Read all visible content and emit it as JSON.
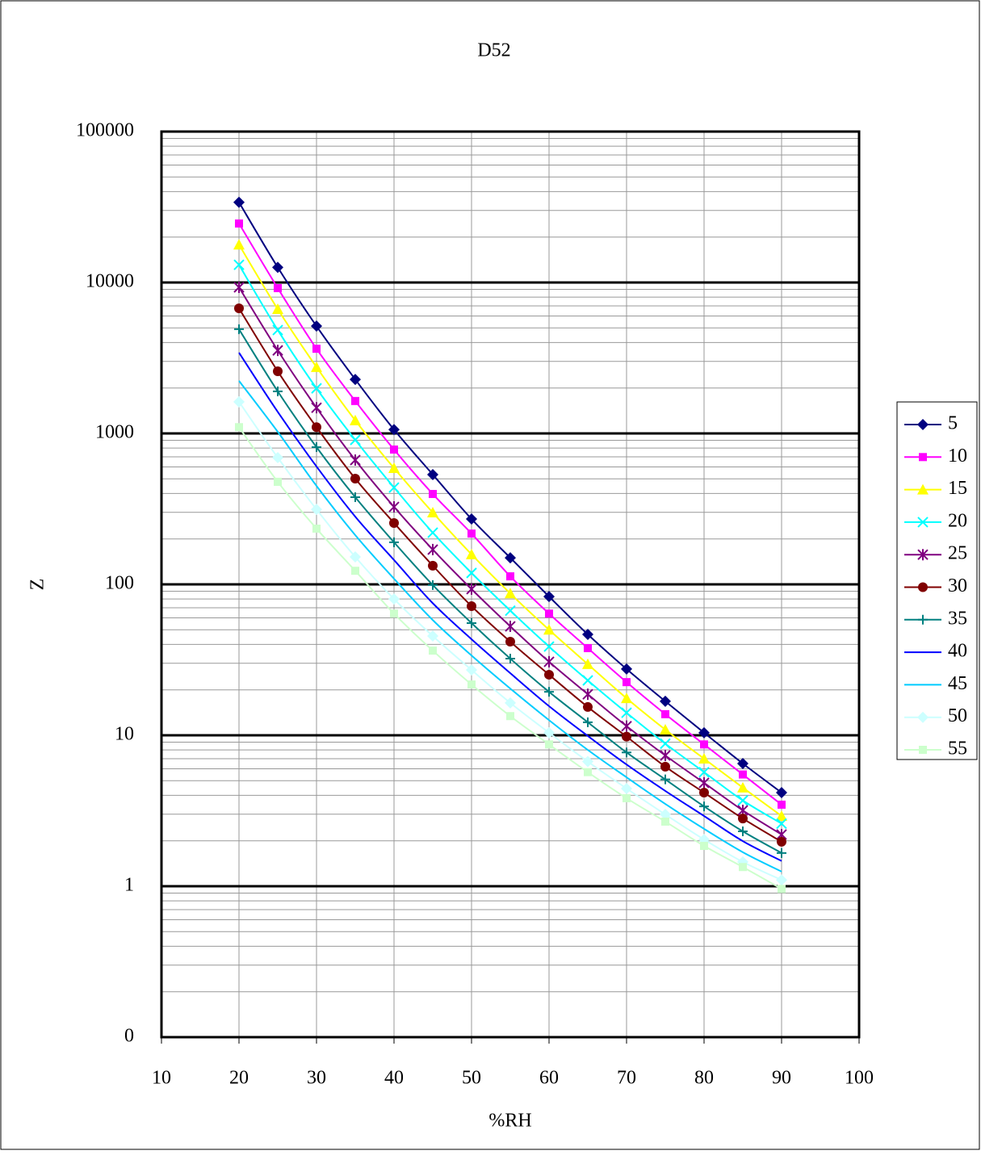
{
  "chart_data": {
    "type": "line",
    "title": "D52",
    "x_label": "%RH",
    "y_label": "Z",
    "x": [
      20,
      25,
      30,
      35,
      40,
      45,
      50,
      55,
      60,
      65,
      70,
      75,
      80,
      85,
      90
    ],
    "xlim": [
      10,
      100
    ],
    "xticks": [
      10,
      20,
      30,
      40,
      50,
      60,
      70,
      80,
      90,
      100
    ],
    "ylim": [
      0.1,
      100000
    ],
    "y_scale": "log",
    "yticks": [
      {
        "value": 0.1,
        "label": "0"
      },
      1,
      10,
      100,
      1000,
      10000,
      100000
    ],
    "grid": true,
    "minor_grid": true,
    "legend": "right",
    "smooth": true,
    "series": [
      {
        "name": "5",
        "color": "#000080",
        "marker": "diamond",
        "values": [
          34000,
          12600,
          5140,
          2280,
          1060,
          534,
          271,
          150,
          83,
          46.6,
          27.5,
          16.8,
          10.4,
          6.5,
          4.17
        ]
      },
      {
        "name": "10",
        "color": "#ff00ff",
        "marker": "square",
        "values": [
          24600,
          9180,
          3640,
          1640,
          782,
          397,
          217,
          113,
          64,
          37.8,
          22.5,
          13.8,
          8.7,
          5.5,
          3.47
        ]
      },
      {
        "name": "15",
        "color": "#ffff00",
        "marker": "triangle",
        "values": [
          17800,
          6660,
          2750,
          1220,
          589,
          299,
          158,
          87,
          50,
          29.6,
          17.6,
          10.9,
          7.0,
          4.5,
          2.92
        ]
      },
      {
        "name": "20",
        "color": "#00ffff",
        "marker": "x",
        "values": [
          13100,
          4840,
          1990,
          906,
          438,
          220,
          119,
          67,
          38.7,
          23.1,
          14.1,
          8.8,
          5.7,
          3.7,
          2.6
        ]
      },
      {
        "name": "25",
        "color": "#800080",
        "marker": "star",
        "values": [
          9290,
          3550,
          1480,
          666,
          326,
          170,
          93,
          52.7,
          30.7,
          18.7,
          11.5,
          7.35,
          4.84,
          3.18,
          2.2
        ]
      },
      {
        "name": "30",
        "color": "#800000",
        "marker": "circle",
        "values": [
          6740,
          2580,
          1100,
          502,
          255,
          133,
          71.7,
          41.7,
          25.2,
          15.4,
          9.8,
          6.2,
          4.17,
          2.81,
          1.97
        ]
      },
      {
        "name": "35",
        "color": "#008080",
        "marker": "plus",
        "values": [
          4900,
          1900,
          811,
          378,
          190,
          99,
          55.4,
          32.2,
          19.4,
          12.2,
          7.7,
          5.1,
          3.38,
          2.31,
          1.66
        ]
      },
      {
        "name": "40",
        "color": "#0000ff",
        "marker": "none",
        "values": [
          3430,
          1390,
          604,
          281,
          145,
          75,
          43.3,
          25.8,
          15.6,
          9.9,
          6.4,
          4.28,
          2.92,
          1.99,
          1.47
        ]
      },
      {
        "name": "45",
        "color": "#00ccff",
        "marker": "none",
        "values": [
          2230,
          1025,
          449,
          212,
          109,
          58,
          33.8,
          20.4,
          12.6,
          8.0,
          5.27,
          3.51,
          2.4,
          1.68,
          1.25
        ]
      },
      {
        "name": "50",
        "color": "#ccffff",
        "marker": "diamond",
        "values": [
          1620,
          691,
          314,
          152,
          80,
          45.5,
          27.1,
          16.4,
          10.4,
          6.7,
          4.44,
          2.99,
          2.04,
          1.45,
          1.1
        ]
      },
      {
        "name": "55",
        "color": "#ccffcc",
        "marker": "square",
        "values": [
          1100,
          478,
          234,
          123,
          64,
          36.4,
          21.7,
          13.4,
          8.7,
          5.7,
          3.83,
          2.68,
          1.85,
          1.34,
          0.96
        ]
      }
    ]
  }
}
